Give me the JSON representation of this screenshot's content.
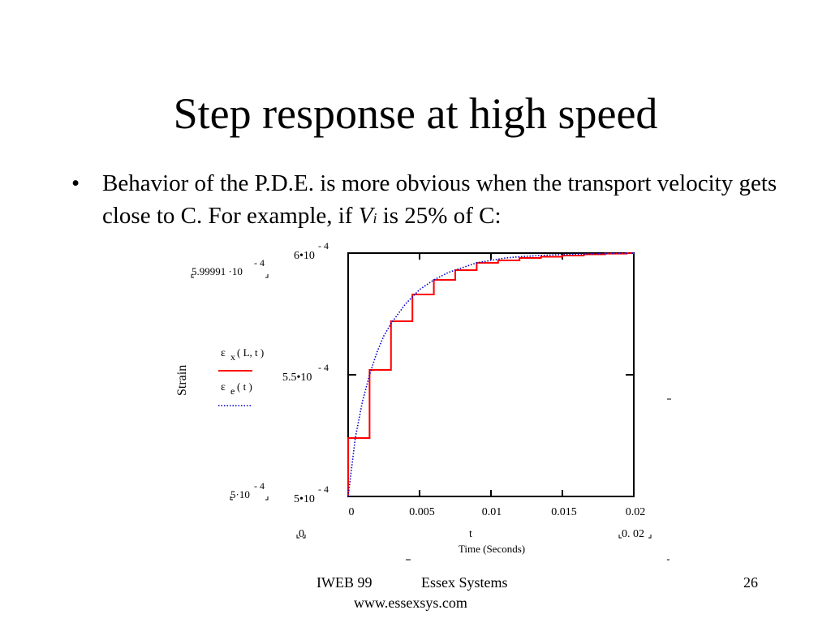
{
  "slide": {
    "title": "Step response at high speed",
    "bullet_symbol": "•",
    "bullet_part1": "Behavior of the P.D.E. is more obvious when the transport velocity gets close to C. For example, if ",
    "bullet_var": "V",
    "bullet_sub": "i",
    "bullet_part2": " is 25% of C:"
  },
  "footer": {
    "left": "IWEB 99",
    "center": "Essex Systems",
    "url": "www.essexsys.com",
    "page": "26"
  },
  "chart_data": {
    "type": "line",
    "ylabel": "Strain",
    "xlabel_var": "t",
    "xlabel": "Time (Seconds)",
    "xlim": [
      0,
      0.02
    ],
    "ylim": [
      0.0005,
      0.0006
    ],
    "x_ticks": [
      {
        "value": 0,
        "label": "0"
      },
      {
        "value": 0.005,
        "label": "0.005"
      },
      {
        "value": 0.01,
        "label": "0.01"
      },
      {
        "value": 0.015,
        "label": "0.015"
      },
      {
        "value": 0.02,
        "label": "0.02"
      }
    ],
    "y_ticks": [
      {
        "value": 0.0006,
        "mant": "6•10",
        "exp": "- 4"
      },
      {
        "value": 0.00055,
        "mant": "5.5•10",
        "exp": "- 4"
      },
      {
        "value": 0.0005,
        "mant": "5•10",
        "exp": "- 4"
      }
    ],
    "y_range_labels": {
      "top_mant": "5.99991 ·10",
      "top_exp": "- 4",
      "bottom_mant": "5·10",
      "bottom_exp": "- 4"
    },
    "x_range_labels": {
      "left": "0",
      "right": "0. 02"
    },
    "legend": [
      {
        "label_main": "ε",
        "label_sub": "x",
        "label_args": "( L, t )",
        "color": "#ff0000",
        "style": "solid"
      },
      {
        "label_main": "ε",
        "label_sub": "e",
        "label_args": "( t )",
        "color": "#0000cc",
        "style": "dotted"
      }
    ],
    "series": [
      {
        "color": "#ff0000",
        "style": "step",
        "x": [
          0,
          0.0015,
          0.003,
          0.0045,
          0.006,
          0.0075,
          0.009,
          0.0105,
          0.012,
          0.0135,
          0.015,
          0.0165,
          0.018,
          0.0195,
          0.02
        ],
        "values": [
          0.000524,
          0.000552,
          0.000572,
          0.000583,
          0.000589,
          0.000593,
          0.000596,
          0.000597,
          0.000598,
          0.0005985,
          0.000599,
          0.0005995,
          0.0005998,
          0.0006,
          0.0006
        ]
      },
      {
        "color": "#0000cc",
        "style": "dotted",
        "x": [
          0,
          0.0005,
          0.001,
          0.0015,
          0.002,
          0.0025,
          0.003,
          0.004,
          0.005,
          0.006,
          0.007,
          0.008,
          0.009,
          0.01,
          0.011,
          0.012,
          0.014,
          0.016,
          0.018,
          0.02
        ],
        "values": [
          0.0005,
          0.000524,
          0.000539,
          0.00055,
          0.000559,
          0.000566,
          0.000571,
          0.000579,
          0.000585,
          0.000589,
          0.000592,
          0.000594,
          0.000596,
          0.000597,
          0.000598,
          0.0005985,
          0.0005992,
          0.0005996,
          0.0005998,
          0.0006
        ]
      }
    ]
  }
}
